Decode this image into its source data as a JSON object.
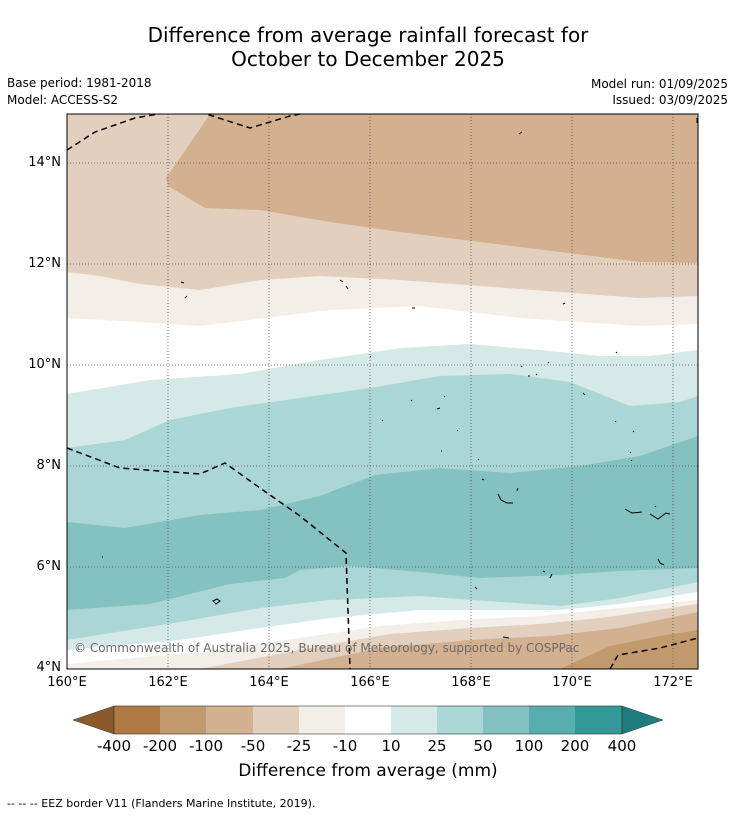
{
  "title": {
    "line1": "Difference from average rainfall forecast for",
    "line2": "October to December 2025"
  },
  "meta": {
    "base_period": "Base period: 1981-2018",
    "model": "Model: ACCESS-S2",
    "model_run": "Model run: 01/09/2025",
    "issued": "Issued: 03/09/2025"
  },
  "map": {
    "lat_labels": [
      "14°N",
      "12°N",
      "10°N",
      "8°N",
      "6°N",
      "4°N"
    ],
    "lon_labels": [
      "160°E",
      "162°E",
      "164°E",
      "166°E",
      "168°E",
      "170°E",
      "172°E"
    ],
    "lat_range": [
      4,
      15
    ],
    "lon_range": [
      160,
      172.5
    ],
    "copyright": "© Commonwealth of Australia 2025, Bureau of Meteorology, supported by COSPPac"
  },
  "colorbar": {
    "labels": [
      "-400",
      "-200",
      "-100",
      "-50",
      "-25",
      "-10",
      "10",
      "25",
      "50",
      "100",
      "200",
      "400"
    ],
    "colors": [
      "#8b5a2b",
      "#b07a45",
      "#c39a6d",
      "#d3b08f",
      "#e2cfbd",
      "#f3eee8",
      "#ffffff",
      "#d5e9e8",
      "#abd6d6",
      "#84c2c2",
      "#58adae",
      "#339998",
      "#1f7c7c"
    ],
    "title": "Difference from average (mm)"
  },
  "legend": {
    "text": "-- -- -- EEZ border V11 (Flanders Marine Institute, 2019)."
  }
}
